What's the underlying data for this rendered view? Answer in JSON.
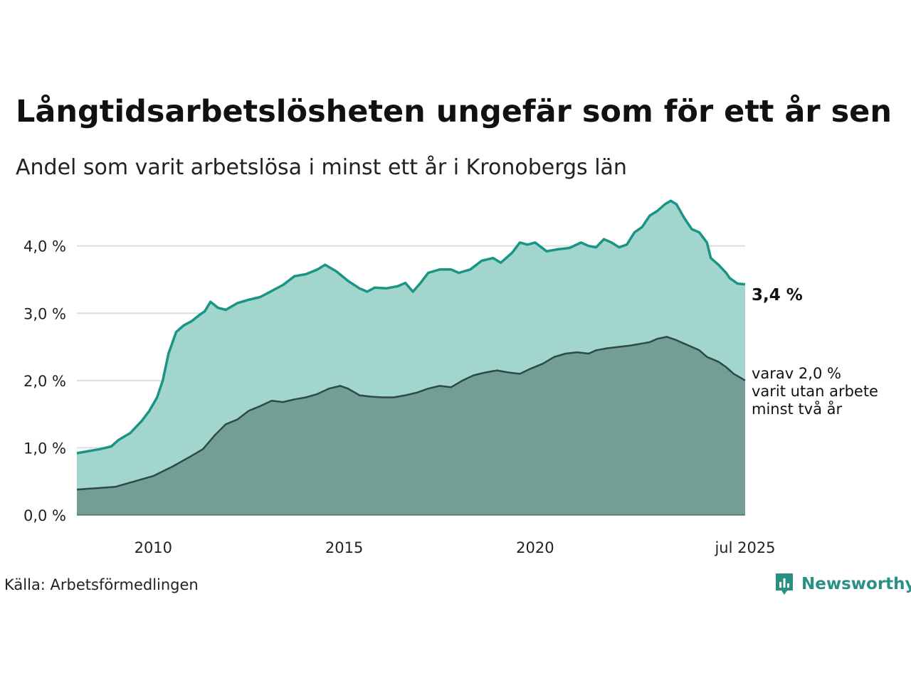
{
  "header": {
    "title": "Långtidsarbetslösheten ungefär som för ett år sen",
    "subtitle": "Andel som varit arbetslösa i minst ett år i Kronobergs län"
  },
  "footer": {
    "source": "Källa: Arbetsförmedlingen",
    "brand": "Newsworthy"
  },
  "colors": {
    "total_line": "#1a9485",
    "total_fill": "#a3d5cf",
    "long_line": "#2e4a45",
    "long_fill": "#729e96",
    "grid": "#dddddd"
  },
  "chart_data": {
    "type": "area",
    "ylim": [
      0,
      4.8
    ],
    "xlim": [
      2008.0,
      2025.5
    ],
    "y_ticks": [
      {
        "value": 0,
        "label": "0,0 %"
      },
      {
        "value": 1,
        "label": "1,0 %"
      },
      {
        "value": 2,
        "label": "2,0 %"
      },
      {
        "value": 3,
        "label": "3,0 %"
      },
      {
        "value": 4,
        "label": "4,0 %"
      }
    ],
    "x_ticks": [
      {
        "value": 2010,
        "label": "2010"
      },
      {
        "value": 2015,
        "label": "2015"
      },
      {
        "value": 2020,
        "label": "2020"
      },
      {
        "value": 2025.5,
        "label": "jul 2025"
      }
    ],
    "grid": true,
    "series": [
      {
        "key": "total",
        "points": [
          [
            2008.0,
            0.92
          ],
          [
            2008.3,
            0.95
          ],
          [
            2008.6,
            0.98
          ],
          [
            2008.9,
            1.02
          ],
          [
            2009.1,
            1.12
          ],
          [
            2009.4,
            1.22
          ],
          [
            2009.7,
            1.4
          ],
          [
            2009.9,
            1.55
          ],
          [
            2010.1,
            1.75
          ],
          [
            2010.25,
            2.0
          ],
          [
            2010.4,
            2.4
          ],
          [
            2010.6,
            2.72
          ],
          [
            2010.8,
            2.82
          ],
          [
            2011.0,
            2.88
          ],
          [
            2011.2,
            2.97
          ],
          [
            2011.35,
            3.03
          ],
          [
            2011.5,
            3.17
          ],
          [
            2011.7,
            3.08
          ],
          [
            2011.9,
            3.05
          ],
          [
            2012.2,
            3.15
          ],
          [
            2012.5,
            3.2
          ],
          [
            2012.8,
            3.24
          ],
          [
            2013.1,
            3.33
          ],
          [
            2013.4,
            3.42
          ],
          [
            2013.7,
            3.55
          ],
          [
            2014.0,
            3.58
          ],
          [
            2014.3,
            3.65
          ],
          [
            2014.5,
            3.72
          ],
          [
            2014.8,
            3.62
          ],
          [
            2015.1,
            3.48
          ],
          [
            2015.4,
            3.37
          ],
          [
            2015.6,
            3.32
          ],
          [
            2015.8,
            3.38
          ],
          [
            2016.1,
            3.37
          ],
          [
            2016.4,
            3.4
          ],
          [
            2016.6,
            3.45
          ],
          [
            2016.8,
            3.32
          ],
          [
            2017.0,
            3.45
          ],
          [
            2017.2,
            3.6
          ],
          [
            2017.5,
            3.65
          ],
          [
            2017.8,
            3.65
          ],
          [
            2018.0,
            3.6
          ],
          [
            2018.3,
            3.65
          ],
          [
            2018.6,
            3.78
          ],
          [
            2018.9,
            3.82
          ],
          [
            2019.1,
            3.75
          ],
          [
            2019.4,
            3.9
          ],
          [
            2019.6,
            4.05
          ],
          [
            2019.8,
            4.02
          ],
          [
            2020.0,
            4.05
          ],
          [
            2020.3,
            3.92
          ],
          [
            2020.6,
            3.95
          ],
          [
            2020.9,
            3.97
          ],
          [
            2021.2,
            4.05
          ],
          [
            2021.4,
            4.0
          ],
          [
            2021.6,
            3.98
          ],
          [
            2021.8,
            4.1
          ],
          [
            2022.0,
            4.05
          ],
          [
            2022.2,
            3.98
          ],
          [
            2022.4,
            4.02
          ],
          [
            2022.6,
            4.2
          ],
          [
            2022.8,
            4.28
          ],
          [
            2023.0,
            4.45
          ],
          [
            2023.2,
            4.52
          ],
          [
            2023.4,
            4.62
          ],
          [
            2023.55,
            4.67
          ],
          [
            2023.7,
            4.62
          ],
          [
            2023.9,
            4.42
          ],
          [
            2024.1,
            4.25
          ],
          [
            2024.3,
            4.2
          ],
          [
            2024.5,
            4.05
          ],
          [
            2024.6,
            3.82
          ],
          [
            2024.8,
            3.72
          ],
          [
            2025.0,
            3.6
          ],
          [
            2025.1,
            3.52
          ],
          [
            2025.3,
            3.44
          ],
          [
            2025.5,
            3.43
          ]
        ]
      },
      {
        "key": "long",
        "points": [
          [
            2008.0,
            0.38
          ],
          [
            2008.5,
            0.4
          ],
          [
            2009.0,
            0.42
          ],
          [
            2009.5,
            0.5
          ],
          [
            2010.0,
            0.58
          ],
          [
            2010.5,
            0.72
          ],
          [
            2011.0,
            0.88
          ],
          [
            2011.3,
            0.98
          ],
          [
            2011.6,
            1.18
          ],
          [
            2011.9,
            1.35
          ],
          [
            2012.2,
            1.42
          ],
          [
            2012.5,
            1.55
          ],
          [
            2012.8,
            1.62
          ],
          [
            2013.1,
            1.7
          ],
          [
            2013.4,
            1.68
          ],
          [
            2013.7,
            1.72
          ],
          [
            2014.0,
            1.75
          ],
          [
            2014.3,
            1.8
          ],
          [
            2014.6,
            1.88
          ],
          [
            2014.9,
            1.92
          ],
          [
            2015.1,
            1.88
          ],
          [
            2015.4,
            1.78
          ],
          [
            2015.7,
            1.76
          ],
          [
            2016.0,
            1.75
          ],
          [
            2016.3,
            1.75
          ],
          [
            2016.6,
            1.78
          ],
          [
            2016.9,
            1.82
          ],
          [
            2017.2,
            1.88
          ],
          [
            2017.5,
            1.92
          ],
          [
            2017.8,
            1.9
          ],
          [
            2018.1,
            2.0
          ],
          [
            2018.4,
            2.08
          ],
          [
            2018.7,
            2.12
          ],
          [
            2019.0,
            2.15
          ],
          [
            2019.3,
            2.12
          ],
          [
            2019.6,
            2.1
          ],
          [
            2019.9,
            2.18
          ],
          [
            2020.2,
            2.25
          ],
          [
            2020.5,
            2.35
          ],
          [
            2020.8,
            2.4
          ],
          [
            2021.1,
            2.42
          ],
          [
            2021.4,
            2.4
          ],
          [
            2021.6,
            2.45
          ],
          [
            2021.9,
            2.48
          ],
          [
            2022.2,
            2.5
          ],
          [
            2022.5,
            2.52
          ],
          [
            2022.8,
            2.55
          ],
          [
            2023.0,
            2.57
          ],
          [
            2023.2,
            2.62
          ],
          [
            2023.45,
            2.65
          ],
          [
            2023.7,
            2.6
          ],
          [
            2023.9,
            2.55
          ],
          [
            2024.1,
            2.5
          ],
          [
            2024.3,
            2.45
          ],
          [
            2024.5,
            2.35
          ],
          [
            2024.8,
            2.28
          ],
          [
            2025.0,
            2.2
          ],
          [
            2025.2,
            2.1
          ],
          [
            2025.35,
            2.05
          ],
          [
            2025.5,
            2.0
          ]
        ]
      }
    ],
    "annotations": {
      "end_value": "3,4 %",
      "sub_lines": [
        "varav 2,0 %",
        "varit utan arbete",
        "minst två år"
      ]
    }
  }
}
